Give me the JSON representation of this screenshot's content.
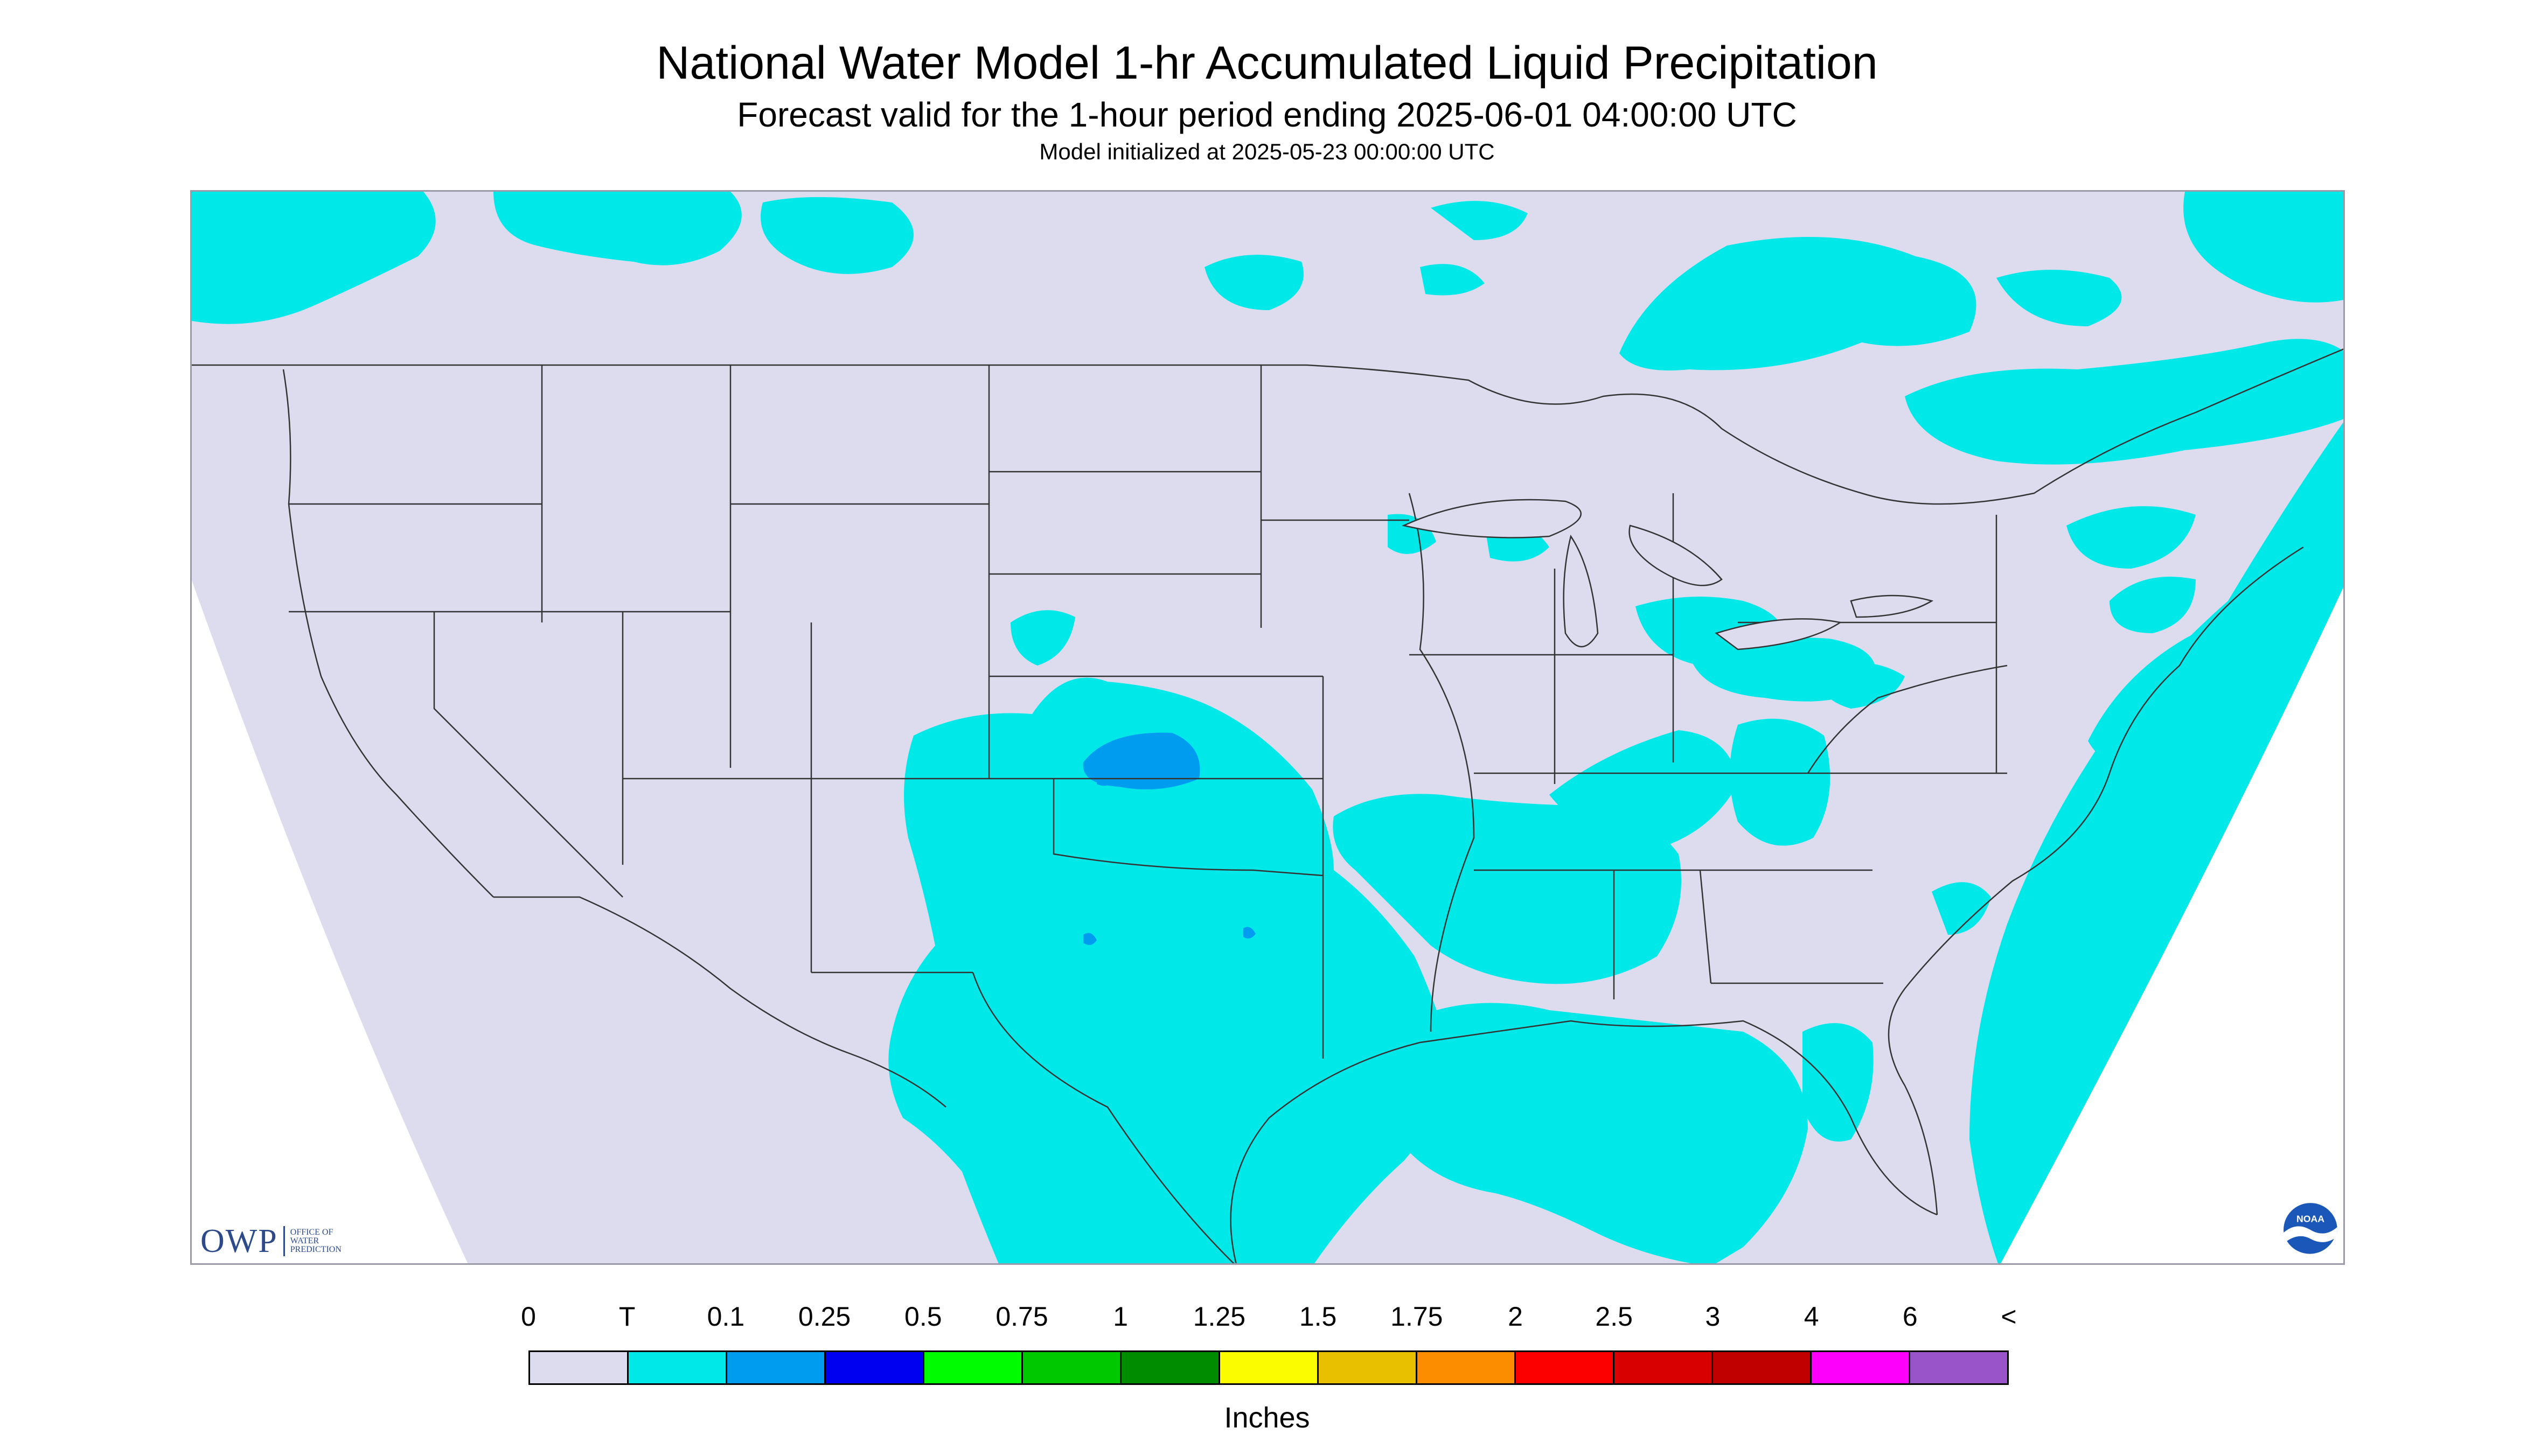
{
  "header": {
    "title": "National Water Model 1-hr Accumulated Liquid Precipitation",
    "subtitle": "Forecast valid for the 1-hour period ending 2025-06-01 04:00:00 UTC",
    "init": "Model initialized at 2025-05-23 00:00:00 UTC"
  },
  "map": {
    "region": "Contiguous United States",
    "background_color": "#dcdcee",
    "outside_domain_color": "#ffffff",
    "boundary_color": "#333333",
    "precip_colors": {
      "trace": "#00e8e8",
      "light": "#009cf0"
    }
  },
  "logos": {
    "owp_mark": "OWP",
    "owp_text": [
      "OFFICE OF",
      "WATER",
      "PREDICTION"
    ],
    "noaa_text": "NOAA"
  },
  "legend": {
    "labels": [
      "0",
      "T",
      "0.1",
      "0.25",
      "0.5",
      "0.75",
      "1",
      "1.25",
      "1.5",
      "1.75",
      "2",
      "2.5",
      "3",
      "4",
      "6",
      "<"
    ],
    "colors": [
      "#dcdcee",
      "#00e8e8",
      "#009cf0",
      "#0000f0",
      "#00fc00",
      "#00c800",
      "#008c00",
      "#fcfc00",
      "#e8c000",
      "#fc8c00",
      "#fc0000",
      "#d80000",
      "#c00000",
      "#fc00fc",
      "#9854c8"
    ],
    "units": "Inches"
  }
}
